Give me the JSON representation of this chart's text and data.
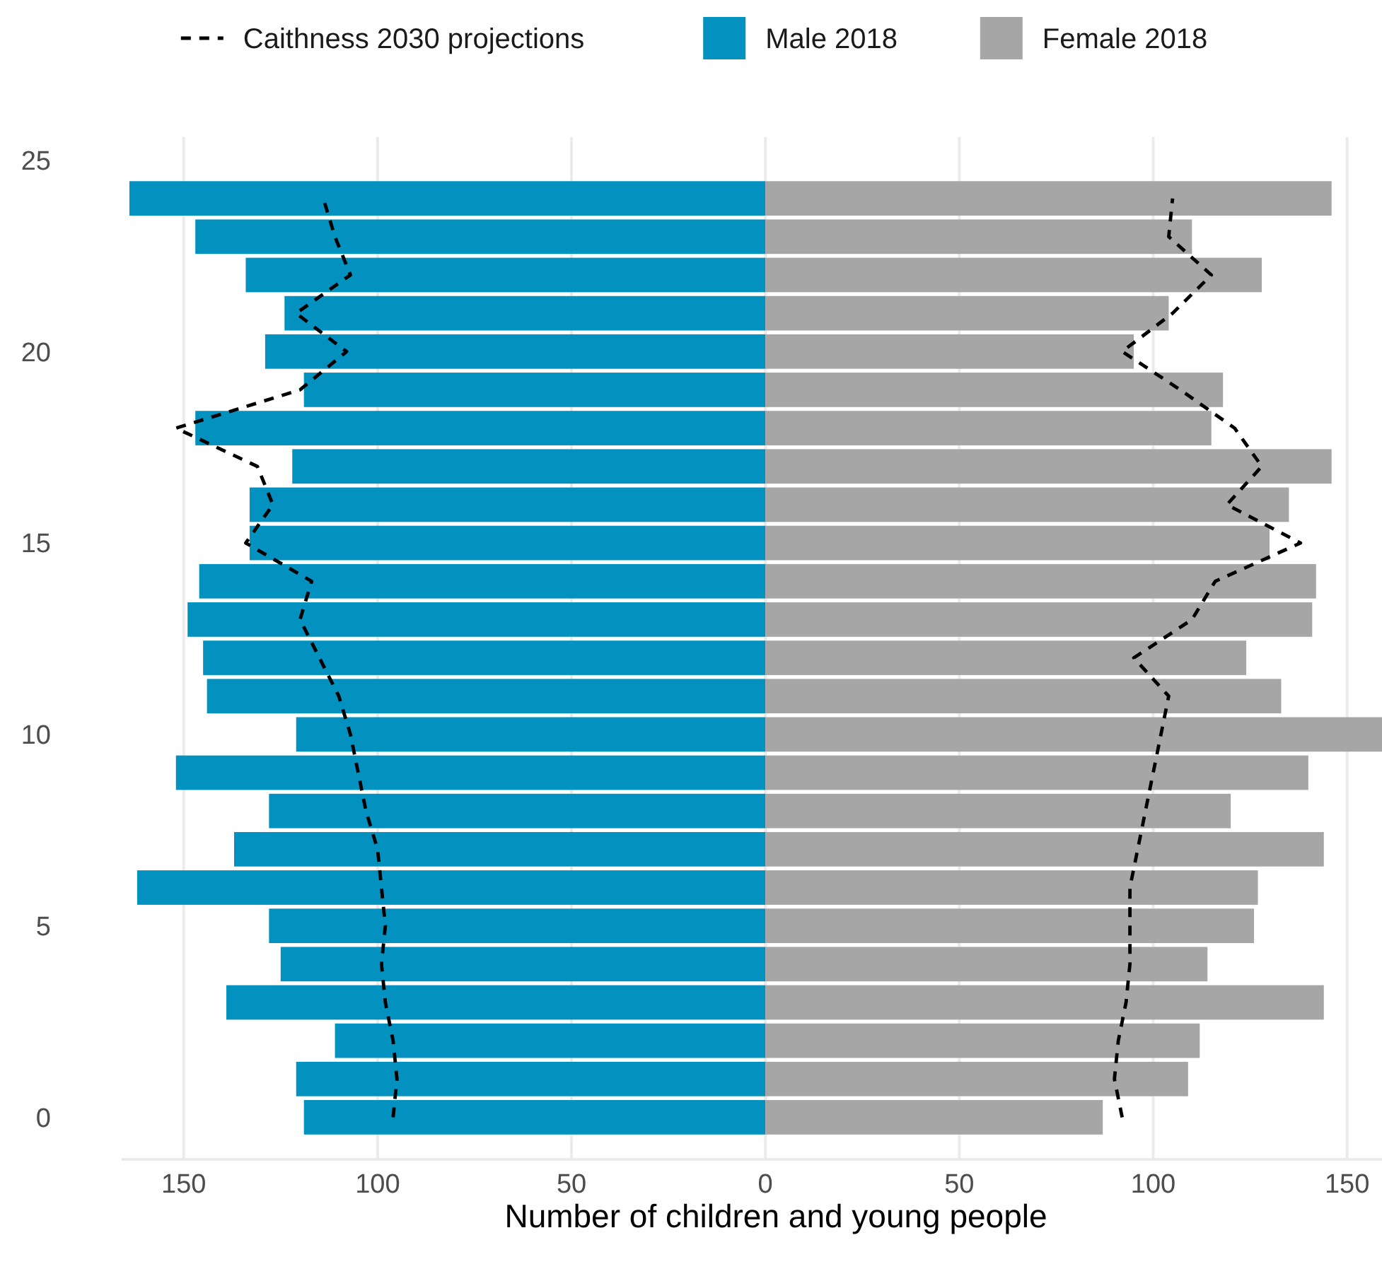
{
  "chart_data": [
    {
      "type": "bar",
      "orientation": "horizontal",
      "xlabel": "Number of children and young people",
      "x": [
        0,
        1,
        2,
        3,
        4,
        5,
        6,
        7,
        8,
        9,
        10,
        11,
        12,
        13,
        14,
        15,
        16,
        17,
        18,
        19,
        20,
        21,
        22,
        23,
        24
      ],
      "xlim": [
        166,
        0
      ],
      "xticks": [
        150,
        100,
        50,
        0
      ],
      "ylim": [
        -1.1,
        25.6
      ],
      "yticks": [
        0,
        5,
        10,
        15,
        20,
        25
      ],
      "grid": "x",
      "legend": "top",
      "series": [
        {
          "name": "Caithness 2030 projections",
          "type": "line",
          "line_style": "dashed",
          "marker": "none",
          "color": "#000000",
          "values": [
            96,
            95,
            96,
            98,
            99,
            98,
            99,
            100,
            103,
            105,
            107,
            110,
            115,
            120,
            117,
            134,
            127,
            131,
            152,
            120,
            108,
            121,
            107,
            111,
            114
          ]
        },
        {
          "name": "Male 2018",
          "color": "#0392c0",
          "values": [
            119,
            121,
            111,
            139,
            125,
            128,
            162,
            137,
            128,
            152,
            121,
            144,
            145,
            149,
            146,
            133,
            133,
            122,
            147,
            119,
            129,
            124,
            134,
            147,
            164
          ]
        }
      ]
    },
    {
      "type": "bar",
      "orientation": "horizontal",
      "x": [
        0,
        1,
        2,
        3,
        4,
        5,
        6,
        7,
        8,
        9,
        10,
        11,
        12,
        13,
        14,
        15,
        16,
        17,
        18,
        19,
        20,
        21,
        22,
        23,
        24
      ],
      "xlim": [
        0,
        159
      ],
      "xticks": [
        50,
        100,
        150
      ],
      "ylim": [
        -1.1,
        25.6
      ],
      "yticks": [
        0,
        5,
        10,
        15,
        20,
        25
      ],
      "tick_labels": "x",
      "grid": "x",
      "legend": "top",
      "series": [
        {
          "type": "line",
          "line_style": "dashed",
          "marker": "none",
          "color": "#000000",
          "values": [
            92,
            90,
            91,
            93,
            94,
            94,
            94,
            96,
            98,
            100,
            102,
            104,
            95,
            110,
            116,
            138,
            119,
            128,
            121,
            107,
            92,
            105,
            115,
            104,
            105
          ]
        },
        {
          "name": "Female 2018",
          "color": "#a6a6a6",
          "values": [
            87,
            109,
            112,
            144,
            114,
            126,
            127,
            144,
            120,
            140,
            159,
            133,
            124,
            141,
            142,
            130,
            135,
            146,
            115,
            118,
            95,
            104,
            128,
            110,
            146
          ]
        }
      ]
    }
  ]
}
